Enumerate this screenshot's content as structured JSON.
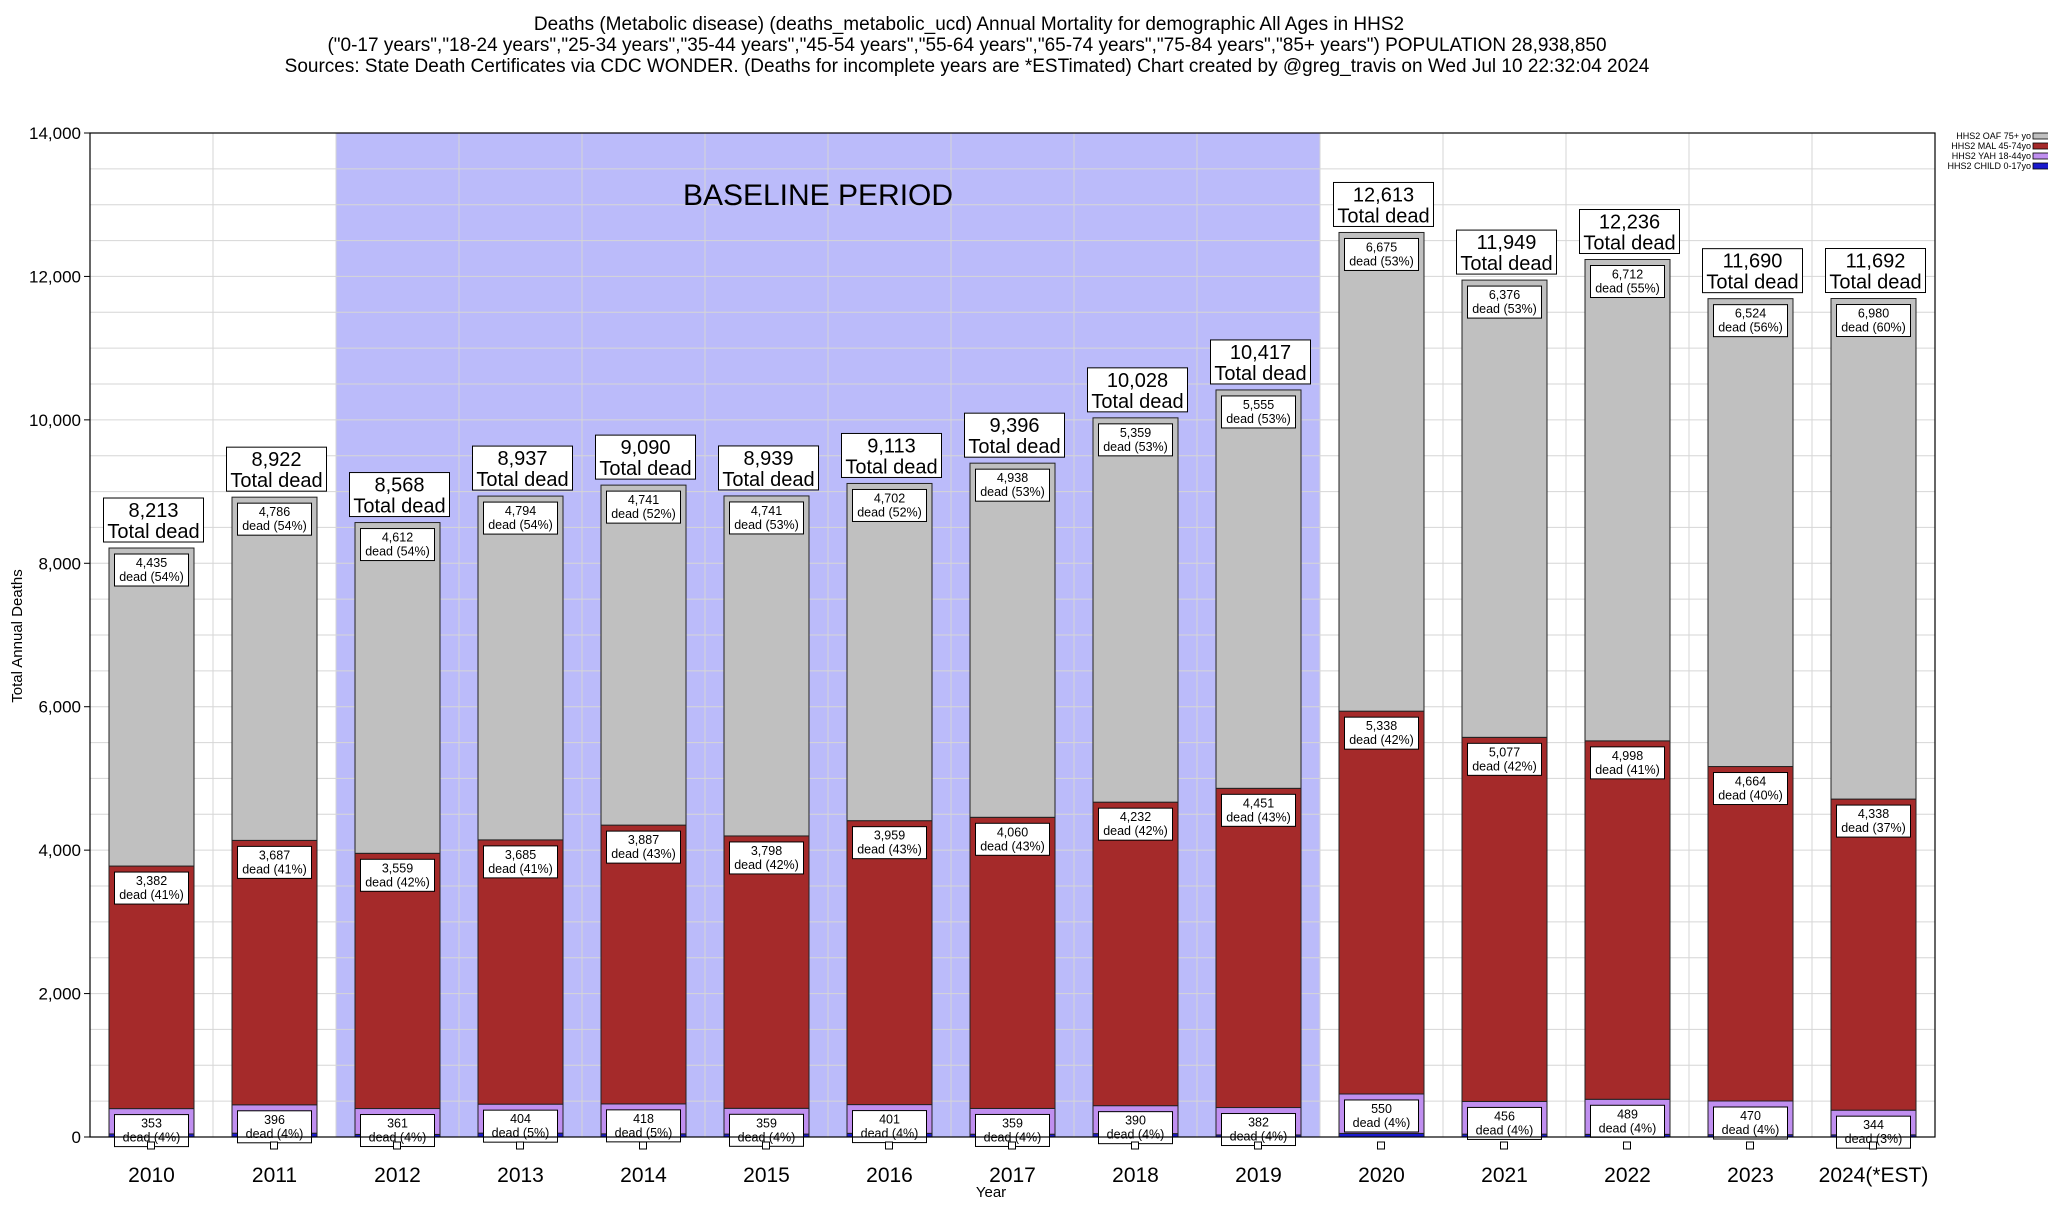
{
  "title_lines": [
    "Deaths (Metabolic disease) (deaths_metabolic_ucd) Annual Mortality for demographic All Ages in HHS2",
    "(\"0-17 years\",\"18-24 years\",\"25-34 years\",\"35-44 years\",\"45-54 years\",\"55-64 years\",\"65-74 years\",\"75-84 years\",\"85+ years\") POPULATION 28,938,850",
    "Sources: State Death Certificates via CDC WONDER. (Deaths for incomplete years are *ESTimated)                Chart created by @greg_travis on Wed Jul 10 22:32:04 2024"
  ],
  "baseline_label": "BASELINE PERIOD",
  "total_label_suffix": "Total dead",
  "chart_data": {
    "type": "bar",
    "stacked": true,
    "xlabel": "Year",
    "ylabel": "Total Annual Deaths",
    "ylim": [
      0,
      14000
    ],
    "yticks": [
      0,
      2000,
      4000,
      6000,
      8000,
      10000,
      12000,
      14000
    ],
    "ytick_labels": [
      "0",
      "2,000",
      "4,000",
      "6,000",
      "8,000",
      "10,000",
      "12,000",
      "14,000"
    ],
    "grid": true,
    "legend_position": "top-right",
    "categories": [
      "2010",
      "2011",
      "2012",
      "2013",
      "2014",
      "2015",
      "2016",
      "2017",
      "2018",
      "2019",
      "2020",
      "2021",
      "2022",
      "2023",
      "2024(*EST)"
    ],
    "baseline_period": [
      "2012",
      "2019"
    ],
    "totals": [
      8213,
      8922,
      8568,
      8937,
      9090,
      8939,
      9113,
      9396,
      10028,
      10417,
      12613,
      11949,
      12236,
      11690,
      11692
    ],
    "total_labels": [
      "8,213",
      "8,922",
      "8,568",
      "8,937",
      "9,090",
      "8,939",
      "9,113",
      "9,396",
      "10,028",
      "10,417",
      "12,613",
      "11,949",
      "12,236",
      "11,690",
      "11,692"
    ],
    "series": [
      {
        "name": "HHS2 CHILD 0-17yo",
        "color": "#1a1acc",
        "values": [
          43,
          53,
          36,
          54,
          44,
          41,
          51,
          39,
          47,
          29,
          50,
          40,
          37,
          32,
          30
        ],
        "labels": []
      },
      {
        "name": "HHS2 YAH 18-44yo",
        "color": "#c08ff0",
        "values": [
          353,
          396,
          361,
          404,
          418,
          359,
          401,
          359,
          390,
          382,
          550,
          456,
          489,
          470,
          344
        ],
        "labels": [
          "353\ndead (4%)",
          "396\ndead (4%)",
          "361\ndead (4%)",
          "404\ndead (5%)",
          "418\ndead (5%)",
          "359\ndead (4%)",
          "401\ndead (4%)",
          "359\ndead (4%)",
          "390\ndead (4%)",
          "382\ndead (4%)",
          "550\ndead (4%)",
          "456\ndead (4%)",
          "489\ndead (4%)",
          "470\ndead (4%)",
          "344\ndead (3%)"
        ]
      },
      {
        "name": "HHS2 MAL 45-74yo",
        "color": "#a52a2a",
        "values": [
          3382,
          3687,
          3559,
          3685,
          3887,
          3798,
          3959,
          4060,
          4232,
          4451,
          5338,
          5077,
          4998,
          4664,
          4338
        ],
        "labels": [
          "3,382\ndead (41%)",
          "3,687\ndead (41%)",
          "3,559\ndead (42%)",
          "3,685\ndead (41%)",
          "3,887\ndead (43%)",
          "3,798\ndead (42%)",
          "3,959\ndead (43%)",
          "4,060\ndead (43%)",
          "4,232\ndead (42%)",
          "4,451\ndead (43%)",
          "5,338\ndead (42%)",
          "5,077\ndead (42%)",
          "4,998\ndead (41%)",
          "4,664\ndead (40%)",
          "4,338\ndead (37%)"
        ]
      },
      {
        "name": "HHS2 OAF 75+ yo",
        "color": "#c0c0c0",
        "values": [
          4435,
          4786,
          4612,
          4794,
          4741,
          4741,
          4702,
          4938,
          5359,
          5555,
          6675,
          6376,
          6712,
          6524,
          6980
        ],
        "labels": [
          "4,435\ndead (54%)",
          "4,786\ndead (54%)",
          "4,612\ndead (54%)",
          "4,794\ndead (54%)",
          "4,741\ndead (52%)",
          "4,741\ndead (53%)",
          "4,702\ndead (52%)",
          "4,938\ndead (53%)",
          "5,359\ndead (53%)",
          "5,555\ndead (53%)",
          "6,675\ndead (53%)",
          "6,376\ndead (53%)",
          "6,712\ndead (55%)",
          "6,524\ndead (56%)",
          "6,980\ndead (60%)"
        ]
      }
    ],
    "legend_order": [
      "HHS2 OAF 75+ yo",
      "HHS2 MAL 45-74yo",
      "HHS2 YAH 18-44yo",
      "HHS2 CHILD 0-17yo"
    ]
  }
}
